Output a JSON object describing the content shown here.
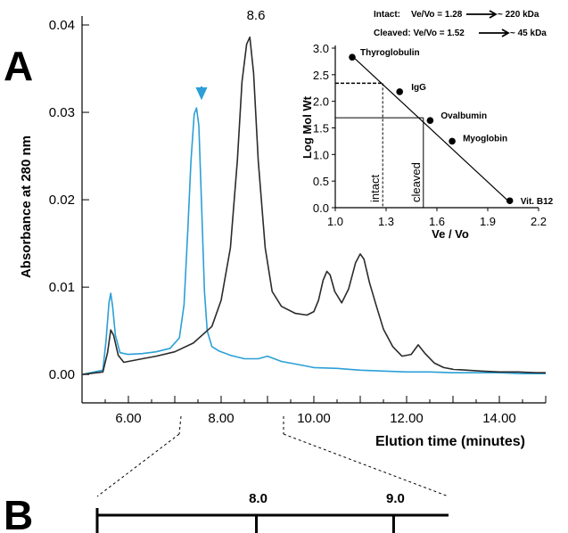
{
  "panels": {
    "a": "A",
    "b": "B"
  },
  "chart_data": [
    {
      "type": "line",
      "title": "",
      "xlabel": "Elution time (minutes)",
      "ylabel": "Absorbance at 280 nm",
      "xlim": [
        5.0,
        15.0
      ],
      "ylim": [
        -0.001,
        0.04
      ],
      "x_ticks": [
        6.0,
        8.0,
        10.0,
        12.0,
        14.0
      ],
      "x_tick_labels": [
        "6.00",
        "8.00",
        "10.00",
        "12.00",
        "14.00"
      ],
      "y_ticks": [
        0.0,
        0.01,
        0.02,
        0.03,
        0.04
      ],
      "y_tick_labels": [
        "0.00",
        "0.01",
        "0.02",
        "0.03",
        "0.04"
      ],
      "annotations": {
        "peak_label": "8.6",
        "arrow_color": "#2b9fd6"
      },
      "series": [
        {
          "name": "intact",
          "color": "#2b2b2b",
          "x": [
            5.0,
            5.45,
            5.55,
            5.62,
            5.68,
            5.78,
            5.9,
            6.1,
            6.3,
            6.6,
            7.0,
            7.4,
            7.8,
            8.0,
            8.2,
            8.35,
            8.45,
            8.55,
            8.62,
            8.7,
            8.8,
            8.95,
            9.1,
            9.3,
            9.6,
            9.85,
            10.0,
            10.1,
            10.2,
            10.28,
            10.35,
            10.45,
            10.6,
            10.75,
            10.9,
            11.0,
            11.08,
            11.2,
            11.35,
            11.5,
            11.7,
            11.9,
            12.1,
            12.25,
            12.4,
            12.6,
            12.8,
            13.0,
            13.3,
            13.6,
            14.0,
            14.4,
            14.8,
            15.0
          ],
          "y": [
            0.0,
            0.0003,
            0.0025,
            0.0051,
            0.0045,
            0.0022,
            0.0014,
            0.0016,
            0.0018,
            0.0021,
            0.0026,
            0.0036,
            0.0055,
            0.0085,
            0.0145,
            0.0245,
            0.0335,
            0.0378,
            0.0386,
            0.0345,
            0.0245,
            0.0145,
            0.0095,
            0.0078,
            0.007,
            0.0068,
            0.0072,
            0.0085,
            0.0108,
            0.0118,
            0.0114,
            0.0095,
            0.0082,
            0.0098,
            0.0128,
            0.0138,
            0.0132,
            0.0105,
            0.0078,
            0.0052,
            0.0032,
            0.0021,
            0.0023,
            0.0034,
            0.0024,
            0.0013,
            0.0008,
            0.0006,
            0.0005,
            0.0004,
            0.0003,
            0.0003,
            0.0002,
            0.0002
          ]
        },
        {
          "name": "cleaved",
          "color": "#2b9fd6",
          "x": [
            5.0,
            5.45,
            5.52,
            5.58,
            5.62,
            5.66,
            5.72,
            5.82,
            6.0,
            6.3,
            6.6,
            6.9,
            7.1,
            7.2,
            7.28,
            7.35,
            7.42,
            7.47,
            7.52,
            7.58,
            7.64,
            7.7,
            7.8,
            7.95,
            8.2,
            8.5,
            8.8,
            9.0,
            9.3,
            9.6,
            10.0,
            10.5,
            11.0,
            11.5,
            12.0,
            12.5,
            13.0,
            13.5,
            14.0,
            14.5,
            15.0
          ],
          "y": [
            0.0,
            0.0005,
            0.004,
            0.0082,
            0.0093,
            0.0078,
            0.0045,
            0.0025,
            0.0023,
            0.0024,
            0.0026,
            0.003,
            0.0042,
            0.008,
            0.0165,
            0.0245,
            0.0298,
            0.0305,
            0.0285,
            0.019,
            0.0095,
            0.005,
            0.0032,
            0.0027,
            0.0022,
            0.0018,
            0.0018,
            0.0021,
            0.0015,
            0.0012,
            0.0008,
            0.0007,
            0.0005,
            0.0004,
            0.0003,
            0.0003,
            0.0002,
            0.0002,
            0.0002,
            0.0001,
            0.0001
          ]
        }
      ]
    },
    {
      "type": "scatter",
      "title": "",
      "xlabel": "Ve / Vo",
      "ylabel": "Log Mol Wt",
      "xlim": [
        1.0,
        2.2
      ],
      "ylim": [
        0.0,
        3.0
      ],
      "x_ticks": [
        1.0,
        1.3,
        1.6,
        1.9,
        2.2
      ],
      "x_tick_labels": [
        "1.0",
        "1.3",
        "1.6",
        "1.9",
        "2.2"
      ],
      "y_ticks": [
        0.0,
        0.5,
        1.0,
        1.5,
        2.0,
        2.5,
        3.0
      ],
      "y_tick_labels": [
        "0.0",
        "0.5",
        "1.0",
        "1.5",
        "2.0",
        "2.5",
        "3.0"
      ],
      "points": [
        {
          "name": "Thyroglobulin",
          "x": 1.1,
          "y": 2.83
        },
        {
          "name": "IgG",
          "x": 1.38,
          "y": 2.18
        },
        {
          "name": "Ovalbumin",
          "x": 1.56,
          "y": 1.64
        },
        {
          "name": "Myoglobin",
          "x": 1.69,
          "y": 1.25
        },
        {
          "name": "Vit. B12",
          "x": 2.03,
          "y": 0.13
        }
      ],
      "fit_line": {
        "x": [
          1.1,
          2.03
        ],
        "y": [
          2.85,
          0.1
        ]
      },
      "markers": [
        {
          "label": "intact",
          "x": 1.28,
          "y": 2.34,
          "style": "dashed"
        },
        {
          "label": "cleaved",
          "x": 1.52,
          "y": 1.69,
          "style": "solid"
        }
      ],
      "notes": [
        {
          "prefix": "Intact:",
          "ratio": "Ve/Vo = 1.28",
          "result": "~ 220 kDa"
        },
        {
          "prefix": "Cleaved: Ve/Vo = 1.52",
          "ratio": "",
          "result": "~ 45 kDa"
        }
      ]
    }
  ],
  "panel_b_scale": {
    "ticks": [
      7.0,
      8.0,
      9.0,
      9.4
    ],
    "labels": [
      "8.0",
      "9.0"
    ]
  }
}
